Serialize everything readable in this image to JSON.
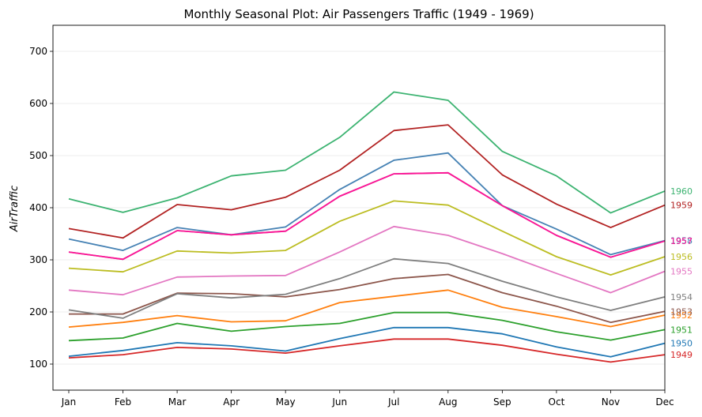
{
  "chart_data": {
    "type": "line",
    "title": "Monthly Seasonal Plot: Air Passengers Traffic (1949 - 1969)",
    "xlabel": "",
    "ylabel": "AirTraffic",
    "categories": [
      "Jan",
      "Feb",
      "Mar",
      "Apr",
      "May",
      "Jun",
      "Jul",
      "Aug",
      "Sep",
      "Oct",
      "Nov",
      "Dec"
    ],
    "ylim": [
      50,
      750
    ],
    "yticks": [
      100,
      200,
      300,
      400,
      500,
      600,
      700
    ],
    "grid": "horizontal",
    "series": [
      {
        "name": "1949",
        "color": "#d62728",
        "values": [
          112,
          118,
          132,
          129,
          121,
          135,
          148,
          148,
          136,
          119,
          104,
          118
        ]
      },
      {
        "name": "1950",
        "color": "#1f77b4",
        "values": [
          115,
          126,
          141,
          135,
          125,
          149,
          170,
          170,
          158,
          133,
          114,
          140
        ]
      },
      {
        "name": "1951",
        "color": "#2ca02c",
        "values": [
          145,
          150,
          178,
          163,
          172,
          178,
          199,
          199,
          184,
          162,
          146,
          166
        ]
      },
      {
        "name": "1952",
        "color": "#ff7f0e",
        "values": [
          171,
          180,
          193,
          181,
          183,
          218,
          230,
          242,
          209,
          191,
          172,
          194
        ]
      },
      {
        "name": "1953",
        "color": "#8c564b",
        "values": [
          196,
          196,
          236,
          235,
          229,
          243,
          264,
          272,
          237,
          211,
          180,
          201
        ]
      },
      {
        "name": "1954",
        "color": "#7f7f7f",
        "values": [
          204,
          188,
          235,
          227,
          234,
          264,
          302,
          293,
          259,
          229,
          203,
          229
        ]
      },
      {
        "name": "1955",
        "color": "#e377c2",
        "values": [
          242,
          233,
          267,
          269,
          270,
          315,
          364,
          347,
          312,
          274,
          237,
          278
        ]
      },
      {
        "name": "1956",
        "color": "#bcbd22",
        "values": [
          284,
          277,
          317,
          313,
          318,
          374,
          413,
          405,
          355,
          306,
          271,
          306
        ]
      },
      {
        "name": "1957",
        "color": "#9467bd",
        "values": [
          315,
          301,
          356,
          348,
          355,
          422,
          465,
          467,
          404,
          347,
          305,
          336
        ]
      },
      {
        "name": "1958",
        "color": "#4682b4",
        "values": [
          340,
          318,
          362,
          348,
          363,
          435,
          491,
          505,
          404,
          359,
          310,
          337
        ]
      },
      {
        "name": "1957",
        "color": "#ff1493",
        "values": [
          315,
          301,
          356,
          348,
          355,
          422,
          465,
          467,
          404,
          347,
          305,
          336
        ]
      },
      {
        "name": "1959",
        "color": "#b22222",
        "values": [
          360,
          342,
          406,
          396,
          420,
          472,
          548,
          559,
          463,
          407,
          362,
          405
        ]
      },
      {
        "name": "1960",
        "color": "#3cb371",
        "values": [
          417,
          391,
          419,
          461,
          472,
          535,
          622,
          606,
          508,
          461,
          390,
          432
        ]
      }
    ]
  }
}
